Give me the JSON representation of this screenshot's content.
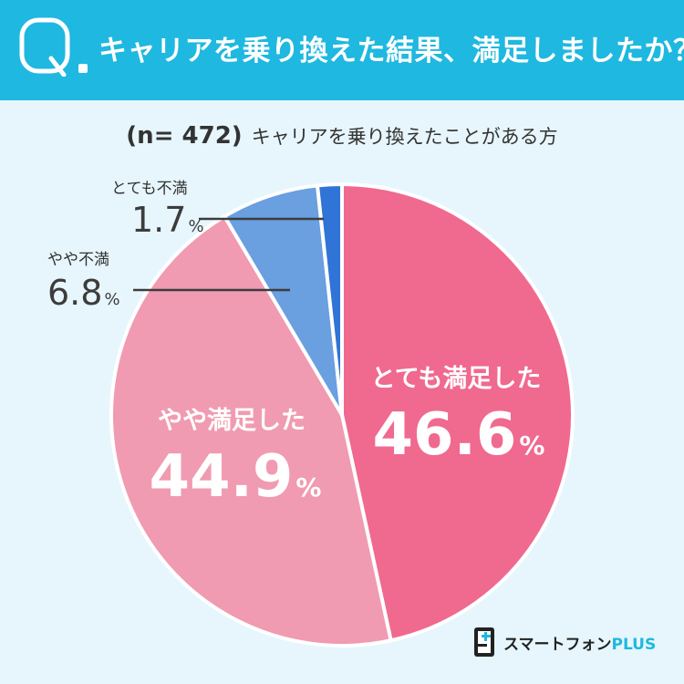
{
  "header": {
    "q_letter": "Q",
    "question": "キャリアを乗り換えた結果、満足しましたか？",
    "bg_color": "#1fb8e0"
  },
  "subtitle": {
    "n_label": "(n= 472)",
    "description": "キャリアを乗り換えたことがある方"
  },
  "chart_data": {
    "type": "pie",
    "start_angle": "top",
    "direction": "clockwise",
    "unit": "%",
    "slices": [
      {
        "label": "とても満足した",
        "value": 46.6,
        "color": "#f0698f"
      },
      {
        "label": "やや満足した",
        "value": 44.9,
        "color": "#f09bb1"
      },
      {
        "label": "やや不満",
        "value": 6.8,
        "color": "#6a9fe0"
      },
      {
        "label": "とても不満",
        "value": 1.7,
        "color": "#2f74d6"
      }
    ]
  },
  "labels": {
    "very_satisfied": {
      "name": "とても満足した",
      "value": "46.6",
      "unit": "%"
    },
    "somewhat_satisfied": {
      "name": "やや満足した",
      "value": "44.9",
      "unit": "%"
    },
    "somewhat_dissatisfied": {
      "name": "やや不満",
      "value": "6.8",
      "unit": "%"
    },
    "very_dissatisfied": {
      "name": "とても不満",
      "value": "1.7",
      "unit": "%"
    }
  },
  "logo": {
    "brand": "スマートフォン",
    "suffix": "PLUS"
  }
}
